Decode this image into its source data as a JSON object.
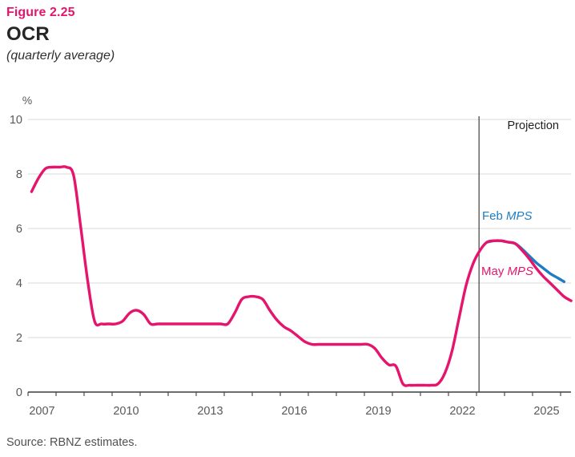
{
  "header": {
    "figure_label": "Figure 2.25",
    "title": "OCR",
    "subtitle": "(quarterly average)"
  },
  "footer": {
    "source": "Source: RBNZ estimates."
  },
  "colors": {
    "pink": "#e5156d",
    "blue": "#1e7dc2",
    "grid": "#d8d8d8",
    "axis": "#3d3d3f",
    "tick_label": "#58595b",
    "annotation_text": "#1f1f21"
  },
  "annotations": {
    "projection": "Projection",
    "feb_prefix": "Feb ",
    "feb_italic": "MPS",
    "may_prefix": "May ",
    "may_italic": "MPS"
  },
  "chart_data": {
    "type": "line",
    "title": "OCR (quarterly average)",
    "unit_label": "%",
    "ylabel": "%",
    "xlabel": "",
    "ylim": [
      0,
      10
    ],
    "yticks": [
      10,
      8,
      6,
      4,
      2,
      0
    ],
    "x_start": 2007,
    "x_end": 2026.45,
    "xtick_labels": [
      2007,
      2010,
      2013,
      2016,
      2019,
      2022,
      2025
    ],
    "xtick_minor_years": [
      2007,
      2008,
      2009,
      2010,
      2011,
      2012,
      2013,
      2014,
      2015,
      2016,
      2017,
      2018,
      2019,
      2020,
      2021,
      2022,
      2023,
      2024,
      2025,
      2026
    ],
    "grid": "horizontal",
    "legend_position": "annotated-on-chart",
    "projection_boundary": 2023.09,
    "series": [
      {
        "name": "Feb MPS",
        "color": "#1e7dc2",
        "points": [
          [
            2023.375,
            5.5
          ],
          [
            2023.625,
            5.55
          ],
          [
            2023.875,
            5.55
          ],
          [
            2024.125,
            5.5
          ],
          [
            2024.375,
            5.45
          ],
          [
            2024.625,
            5.25
          ],
          [
            2024.875,
            5.0
          ],
          [
            2025.125,
            4.75
          ],
          [
            2025.375,
            4.55
          ],
          [
            2025.625,
            4.35
          ],
          [
            2025.875,
            4.2
          ],
          [
            2026.125,
            4.05
          ]
        ]
      },
      {
        "name": "May MPS",
        "color": "#e5156d",
        "points": [
          [
            2007.125,
            7.35
          ],
          [
            2007.375,
            7.85
          ],
          [
            2007.625,
            8.2
          ],
          [
            2007.875,
            8.25
          ],
          [
            2008.125,
            8.25
          ],
          [
            2008.375,
            8.25
          ],
          [
            2008.625,
            7.95
          ],
          [
            2008.875,
            6.1
          ],
          [
            2009.125,
            4.1
          ],
          [
            2009.375,
            2.6
          ],
          [
            2009.625,
            2.5
          ],
          [
            2009.875,
            2.5
          ],
          [
            2010.125,
            2.5
          ],
          [
            2010.375,
            2.6
          ],
          [
            2010.625,
            2.9
          ],
          [
            2010.875,
            3.0
          ],
          [
            2011.125,
            2.85
          ],
          [
            2011.375,
            2.5
          ],
          [
            2011.625,
            2.5
          ],
          [
            2011.875,
            2.5
          ],
          [
            2012.125,
            2.5
          ],
          [
            2012.375,
            2.5
          ],
          [
            2012.625,
            2.5
          ],
          [
            2012.875,
            2.5
          ],
          [
            2013.125,
            2.5
          ],
          [
            2013.375,
            2.5
          ],
          [
            2013.625,
            2.5
          ],
          [
            2013.875,
            2.5
          ],
          [
            2014.125,
            2.5
          ],
          [
            2014.375,
            2.9
          ],
          [
            2014.625,
            3.4
          ],
          [
            2014.875,
            3.5
          ],
          [
            2015.125,
            3.5
          ],
          [
            2015.375,
            3.4
          ],
          [
            2015.625,
            3.0
          ],
          [
            2015.875,
            2.65
          ],
          [
            2016.125,
            2.4
          ],
          [
            2016.375,
            2.25
          ],
          [
            2016.625,
            2.05
          ],
          [
            2016.875,
            1.85
          ],
          [
            2017.125,
            1.75
          ],
          [
            2017.375,
            1.75
          ],
          [
            2017.625,
            1.75
          ],
          [
            2017.875,
            1.75
          ],
          [
            2018.125,
            1.75
          ],
          [
            2018.375,
            1.75
          ],
          [
            2018.625,
            1.75
          ],
          [
            2018.875,
            1.75
          ],
          [
            2019.125,
            1.75
          ],
          [
            2019.375,
            1.6
          ],
          [
            2019.625,
            1.25
          ],
          [
            2019.875,
            1.0
          ],
          [
            2020.125,
            0.95
          ],
          [
            2020.375,
            0.3
          ],
          [
            2020.625,
            0.25
          ],
          [
            2020.875,
            0.25
          ],
          [
            2021.125,
            0.25
          ],
          [
            2021.375,
            0.25
          ],
          [
            2021.625,
            0.3
          ],
          [
            2021.875,
            0.7
          ],
          [
            2022.125,
            1.5
          ],
          [
            2022.375,
            2.7
          ],
          [
            2022.625,
            3.9
          ],
          [
            2022.875,
            4.7
          ],
          [
            2023.125,
            5.2
          ],
          [
            2023.375,
            5.5
          ],
          [
            2023.625,
            5.55
          ],
          [
            2023.875,
            5.55
          ],
          [
            2024.125,
            5.5
          ],
          [
            2024.375,
            5.45
          ],
          [
            2024.625,
            5.2
          ],
          [
            2024.875,
            4.9
          ],
          [
            2025.125,
            4.55
          ],
          [
            2025.375,
            4.25
          ],
          [
            2025.625,
            4.0
          ],
          [
            2025.875,
            3.75
          ],
          [
            2026.125,
            3.5
          ],
          [
            2026.375,
            3.35
          ]
        ]
      }
    ]
  }
}
